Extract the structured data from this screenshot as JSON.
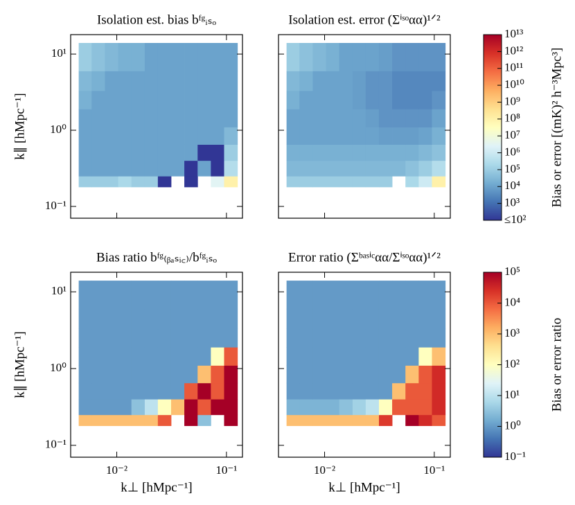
{
  "chart_data": [
    {
      "type": "heatmap",
      "title": "Isolation est. bias bᶠᵍᵢₛₒ",
      "ylabel": "k∥ [hMpc⁻¹]",
      "xscale": "log",
      "yscale": "log",
      "xlim": [
        0.0038,
        0.14
      ],
      "ylim": [
        0.07,
        18
      ],
      "xticks": [
        0.01,
        0.1
      ],
      "show_xticklabels": false,
      "yticks": [
        {
          "value": 0.1,
          "label": "10⁻¹"
        },
        {
          "value": 1,
          "label": "10⁰"
        },
        {
          "value": 10,
          "label": "10¹"
        }
      ],
      "clim": [
        100,
        10000000000000.0
      ],
      "colormap": [
        "#313695",
        "#4575b4",
        "#74add1",
        "#abd9e9",
        "#e0f3f8",
        "#ffffbf",
        "#fee090",
        "#fdae61",
        "#f46d43",
        "#d73027",
        "#a50026"
      ],
      "xedges": [
        0.0045,
        0.0059,
        0.0078,
        0.0103,
        0.0136,
        0.018,
        0.0237,
        0.0313,
        0.0413,
        0.0546,
        0.0721,
        0.0952,
        0.126
      ],
      "yedges": [
        0.18,
        0.25,
        0.4,
        0.65,
        1.1,
        1.9,
        3.3,
        6,
        14
      ],
      "z": [
        [
          100000.0,
          100000.0,
          100000.0,
          200000.0,
          100000.0,
          100000.0,
          50,
          null,
          50,
          null,
          3000000.0,
          100000000.0
        ],
        [
          10000.0,
          10000.0,
          10000.0,
          10000.0,
          10000.0,
          10000.0,
          10000.0,
          10000.0,
          50,
          10000.0,
          50,
          300000.0
        ],
        [
          10000.0,
          10000.0,
          10000.0,
          10000.0,
          10000.0,
          10000.0,
          10000.0,
          10000.0,
          10000.0,
          50,
          80,
          100000.0
        ],
        [
          10000.0,
          10000.0,
          10000.0,
          10000.0,
          10000.0,
          10000.0,
          10000.0,
          10000.0,
          10000.0,
          10000.0,
          10000.0,
          30000.0
        ],
        [
          10000.0,
          10000.0,
          10000.0,
          10000.0,
          10000.0,
          10000.0,
          10000.0,
          10000.0,
          10000.0,
          10000.0,
          10000.0,
          10000.0
        ],
        [
          20000.0,
          10000.0,
          10000.0,
          10000.0,
          10000.0,
          10000.0,
          10000.0,
          10000.0,
          10000.0,
          10000.0,
          10000.0,
          10000.0
        ],
        [
          30000.0,
          20000.0,
          10000.0,
          10000.0,
          10000.0,
          10000.0,
          10000.0,
          10000.0,
          10000.0,
          10000.0,
          10000.0,
          10000.0
        ],
        [
          100000.0,
          50000.0,
          30000.0,
          20000.0,
          20000.0,
          10000.0,
          10000.0,
          10000.0,
          10000.0,
          10000.0,
          10000.0,
          10000.0
        ]
      ]
    },
    {
      "type": "heatmap",
      "title": "Isolation est. error (Σⁱˢᵒαα)¹ᐟ²",
      "xscale": "log",
      "yscale": "log",
      "xlim": [
        0.0038,
        0.14
      ],
      "ylim": [
        0.07,
        18
      ],
      "xticks": [
        0.01,
        0.1
      ],
      "show_xticklabels": false,
      "yticks": [
        0.1,
        1,
        10
      ],
      "show_yticklabels": false,
      "clim": [
        100,
        10000000000000.0
      ],
      "colormap": [
        "#313695",
        "#4575b4",
        "#74add1",
        "#abd9e9",
        "#e0f3f8",
        "#ffffbf",
        "#fee090",
        "#fdae61",
        "#f46d43",
        "#d73027",
        "#a50026"
      ],
      "xedges": [
        0.0045,
        0.0059,
        0.0078,
        0.0103,
        0.0136,
        0.018,
        0.0237,
        0.0313,
        0.0413,
        0.0546,
        0.0721,
        0.0952,
        0.126
      ],
      "yedges": [
        0.18,
        0.25,
        0.4,
        0.65,
        1.1,
        1.9,
        3.3,
        6,
        14
      ],
      "z": [
        [
          100000.0,
          100000.0,
          100000.0,
          100000.0,
          100000.0,
          100000.0,
          100000.0,
          100000.0,
          null,
          200000.0,
          1000000.0,
          100000000.0
        ],
        [
          30000.0,
          30000.0,
          30000.0,
          30000.0,
          30000.0,
          30000.0,
          30000.0,
          30000.0,
          30000.0,
          50000.0,
          100000.0,
          300000.0
        ],
        [
          20000.0,
          20000.0,
          20000.0,
          20000.0,
          20000.0,
          20000.0,
          20000.0,
          20000.0,
          20000.0,
          20000.0,
          30000.0,
          50000.0
        ],
        [
          10000.0,
          10000.0,
          10000.0,
          10000.0,
          10000.0,
          10000.0,
          10000.0,
          8000.0,
          8000.0,
          8000.0,
          10000.0,
          20000.0
        ],
        [
          10000.0,
          10000.0,
          10000.0,
          10000.0,
          10000.0,
          10000.0,
          8000.0,
          5000.0,
          5000.0,
          5000.0,
          5000.0,
          10000.0
        ],
        [
          20000.0,
          10000.0,
          10000.0,
          10000.0,
          10000.0,
          8000.0,
          5000.0,
          5000.0,
          3000.0,
          3000.0,
          3000.0,
          5000.0
        ],
        [
          30000.0,
          20000.0,
          10000.0,
          10000.0,
          10000.0,
          8000.0,
          5000.0,
          5000.0,
          3000.0,
          3000.0,
          3000.0,
          3000.0
        ],
        [
          100000.0,
          50000.0,
          30000.0,
          20000.0,
          10000.0,
          10000.0,
          10000.0,
          8000.0,
          5000.0,
          5000.0,
          5000.0,
          5000.0
        ]
      ],
      "colorbar": {
        "label": "Bias or error [(mK)² h⁻³Mpc³]",
        "ticks": [
          {
            "value": 100,
            "label": "≤10²"
          },
          {
            "value": 1000.0,
            "label": "10³"
          },
          {
            "value": 10000.0,
            "label": "10⁴"
          },
          {
            "value": 100000.0,
            "label": "10⁵"
          },
          {
            "value": 1000000.0,
            "label": "10⁶"
          },
          {
            "value": 10000000.0,
            "label": "10⁷"
          },
          {
            "value": 100000000.0,
            "label": "10⁸"
          },
          {
            "value": 1000000000.0,
            "label": "10⁹"
          },
          {
            "value": 10000000000.0,
            "label": "10¹⁰"
          },
          {
            "value": 100000000000.0,
            "label": "10¹¹"
          },
          {
            "value": 1000000000000.0,
            "label": "10¹²"
          },
          {
            "value": 10000000000000.0,
            "label": "10¹³"
          }
        ]
      }
    },
    {
      "type": "heatmap",
      "title": "Bias ratio bᶠᵍ₍ᵦₐₛᵢ꜀₎/bᶠᵍᵢₛₒ",
      "ylabel": "k∥ [hMpc⁻¹]",
      "xlabel": "k⊥ [hMpc⁻¹]",
      "xscale": "log",
      "yscale": "log",
      "xlim": [
        0.0038,
        0.14
      ],
      "ylim": [
        0.07,
        18
      ],
      "xticks": [
        {
          "value": 0.01,
          "label": "10⁻²"
        },
        {
          "value": 0.1,
          "label": "10⁻¹"
        }
      ],
      "yticks": [
        {
          "value": 0.1,
          "label": "10⁻¹"
        },
        {
          "value": 1,
          "label": "10⁰"
        },
        {
          "value": 10,
          "label": "10¹"
        }
      ],
      "clim": [
        0.1,
        100000.0
      ],
      "colormap": [
        "#313695",
        "#4575b4",
        "#74add1",
        "#abd9e9",
        "#e0f3f8",
        "#ffffbf",
        "#fee090",
        "#fdae61",
        "#f46d43",
        "#d73027",
        "#a50026"
      ],
      "xedges": [
        0.0045,
        0.0059,
        0.0078,
        0.0103,
        0.0136,
        0.018,
        0.0237,
        0.0313,
        0.0413,
        0.0546,
        0.0721,
        0.0952,
        0.126
      ],
      "yedges": [
        0.18,
        0.25,
        0.4,
        0.65,
        1.1,
        1.9,
        3.3,
        6,
        14
      ],
      "z": [
        [
          1000.0,
          1000.0,
          1000.0,
          1000.0,
          1000.0,
          1000.0,
          10000.0,
          null,
          100000.0,
          3,
          null,
          100000.0
        ],
        [
          1,
          1,
          1,
          1,
          3,
          10,
          100,
          1000.0,
          100000.0,
          10000.0,
          100000.0,
          100000.0
        ],
        [
          1,
          1,
          1,
          1,
          1,
          1,
          1,
          1,
          10000.0,
          100000.0,
          10000.0,
          100000.0
        ],
        [
          1,
          1,
          1,
          1,
          1,
          1,
          1,
          1,
          1,
          1000.0,
          10000.0,
          100000.0
        ],
        [
          1,
          1,
          1,
          1,
          1,
          1,
          1,
          1,
          1,
          1,
          100,
          10000.0
        ],
        [
          1,
          1,
          1,
          1,
          1,
          1,
          1,
          1,
          1,
          1,
          1,
          1
        ],
        [
          1,
          1,
          1,
          1,
          1,
          1,
          1,
          1,
          1,
          1,
          1,
          1
        ],
        [
          1,
          1,
          1,
          1,
          1,
          1,
          1,
          1,
          1,
          1,
          1,
          1
        ]
      ]
    },
    {
      "type": "heatmap",
      "title": "Error ratio (Σᵇᵃˢⁱᶜαα/Σⁱˢᵒαα)¹ᐟ²",
      "xlabel": "k⊥ [hMpc⁻¹]",
      "xscale": "log",
      "yscale": "log",
      "xlim": [
        0.0038,
        0.14
      ],
      "ylim": [
        0.07,
        18
      ],
      "xticks": [
        {
          "value": 0.01,
          "label": "10⁻²"
        },
        {
          "value": 0.1,
          "label": "10⁻¹"
        }
      ],
      "yticks": [
        0.1,
        1,
        10
      ],
      "show_yticklabels": false,
      "clim": [
        0.1,
        100000.0
      ],
      "colormap": [
        "#313695",
        "#4575b4",
        "#74add1",
        "#abd9e9",
        "#e0f3f8",
        "#ffffbf",
        "#fee090",
        "#fdae61",
        "#f46d43",
        "#d73027",
        "#a50026"
      ],
      "xedges": [
        0.0045,
        0.0059,
        0.0078,
        0.0103,
        0.0136,
        0.018,
        0.0237,
        0.0313,
        0.0413,
        0.0546,
        0.0721,
        0.0952,
        0.126
      ],
      "yedges": [
        0.18,
        0.25,
        0.4,
        0.65,
        1.1,
        1.9,
        3.3,
        6,
        14
      ],
      "z": [
        [
          1000.0,
          1000.0,
          1000.0,
          1000.0,
          1000.0,
          1000.0,
          1000.0,
          20000.0,
          null,
          100000.0,
          30000.0,
          10000.0
        ],
        [
          2,
          2,
          2,
          2,
          3,
          5,
          10,
          100,
          10000.0,
          10000.0,
          10000.0,
          30000.0
        ],
        [
          1,
          1,
          1,
          1,
          1,
          1,
          1,
          1,
          1000.0,
          10000.0,
          10000.0,
          30000.0
        ],
        [
          1,
          1,
          1,
          1,
          1,
          1,
          1,
          1,
          1,
          1000.0,
          10000.0,
          30000.0
        ],
        [
          1,
          1,
          1,
          1,
          1,
          1,
          1,
          1,
          1,
          1,
          100,
          1000.0
        ],
        [
          1,
          1,
          1,
          1,
          1,
          1,
          1,
          1,
          1,
          1,
          1,
          1
        ],
        [
          1,
          1,
          1,
          1,
          1,
          1,
          1,
          1,
          1,
          1,
          1,
          1
        ],
        [
          1,
          1,
          1,
          1,
          1,
          1,
          1,
          1,
          1,
          1,
          1,
          1
        ]
      ],
      "colorbar": {
        "label": "Bias or error ratio",
        "ticks": [
          {
            "value": 0.1,
            "label": "10⁻¹"
          },
          {
            "value": 1,
            "label": "10⁰"
          },
          {
            "value": 10,
            "label": "10¹"
          },
          {
            "value": 100,
            "label": "10²"
          },
          {
            "value": 1000,
            "label": "10³"
          },
          {
            "value": 10000,
            "label": "10⁴"
          },
          {
            "value": 100000,
            "label": "10⁵"
          }
        ]
      }
    }
  ]
}
